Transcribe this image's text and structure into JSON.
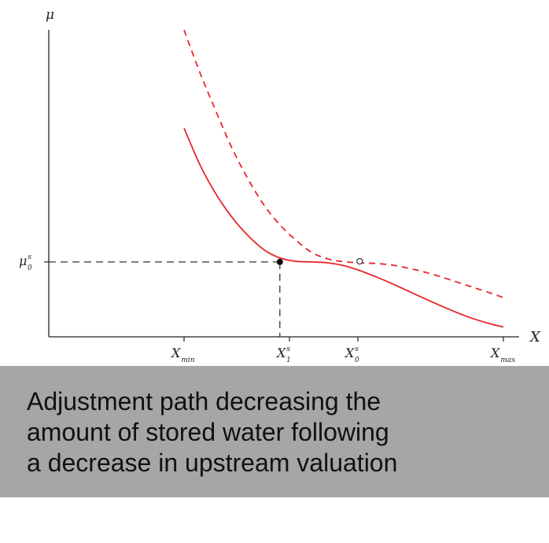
{
  "chart_data": {
    "type": "line",
    "xlabel": "X",
    "ylabel": "μ",
    "x_ticks": [
      {
        "main": "X",
        "sub": "min",
        "sup": ""
      },
      {
        "main": "X",
        "sub": "1",
        "sup": "s"
      },
      {
        "main": "X",
        "sub": "0",
        "sup": "s"
      },
      {
        "main": "X",
        "sub": "max",
        "sup": ""
      }
    ],
    "y_ticks": [
      {
        "main": "μ",
        "sub": "0",
        "sup": "s"
      }
    ],
    "series": [
      {
        "style": "solid",
        "color": "#e8262b",
        "x": [
          0.0,
          0.05,
          0.1,
          0.15,
          0.2,
          0.25,
          0.3,
          0.35,
          0.4,
          0.45,
          0.5,
          0.55,
          0.6,
          0.65,
          0.7,
          0.75,
          0.8,
          0.85,
          0.9,
          0.95,
          1.0
        ],
        "y": [
          0.68,
          0.56,
          0.465,
          0.39,
          0.33,
          0.284,
          0.257,
          0.246,
          0.244,
          0.241,
          0.232,
          0.216,
          0.196,
          0.174,
          0.15,
          0.126,
          0.103,
          0.081,
          0.061,
          0.045,
          0.032
        ]
      },
      {
        "style": "dashed",
        "color": "#e8262b",
        "x": [
          0.0,
          0.05,
          0.1,
          0.15,
          0.2,
          0.25,
          0.3,
          0.35,
          0.4,
          0.45,
          0.5,
          0.55,
          0.6,
          0.65,
          0.7,
          0.75,
          0.8,
          0.85,
          0.9,
          0.95,
          1.0
        ],
        "y": [
          1.0,
          0.86,
          0.735,
          0.615,
          0.515,
          0.43,
          0.365,
          0.315,
          0.275,
          0.254,
          0.245,
          0.241,
          0.239,
          0.234,
          0.224,
          0.212,
          0.197,
          0.18,
          0.163,
          0.146,
          0.128
        ]
      }
    ],
    "points": [
      {
        "x": 0.3,
        "y": 0.244,
        "style": "filled"
      },
      {
        "x": 0.55,
        "y": 0.246,
        "style": "hollow"
      }
    ],
    "reference_lines": {
      "x": 0.3,
      "y": 0.244
    }
  },
  "caption": {
    "lines": [
      "Adjustment path decreasing the",
      "amount of stored water following",
      "a decrease in upstream valuation"
    ]
  }
}
